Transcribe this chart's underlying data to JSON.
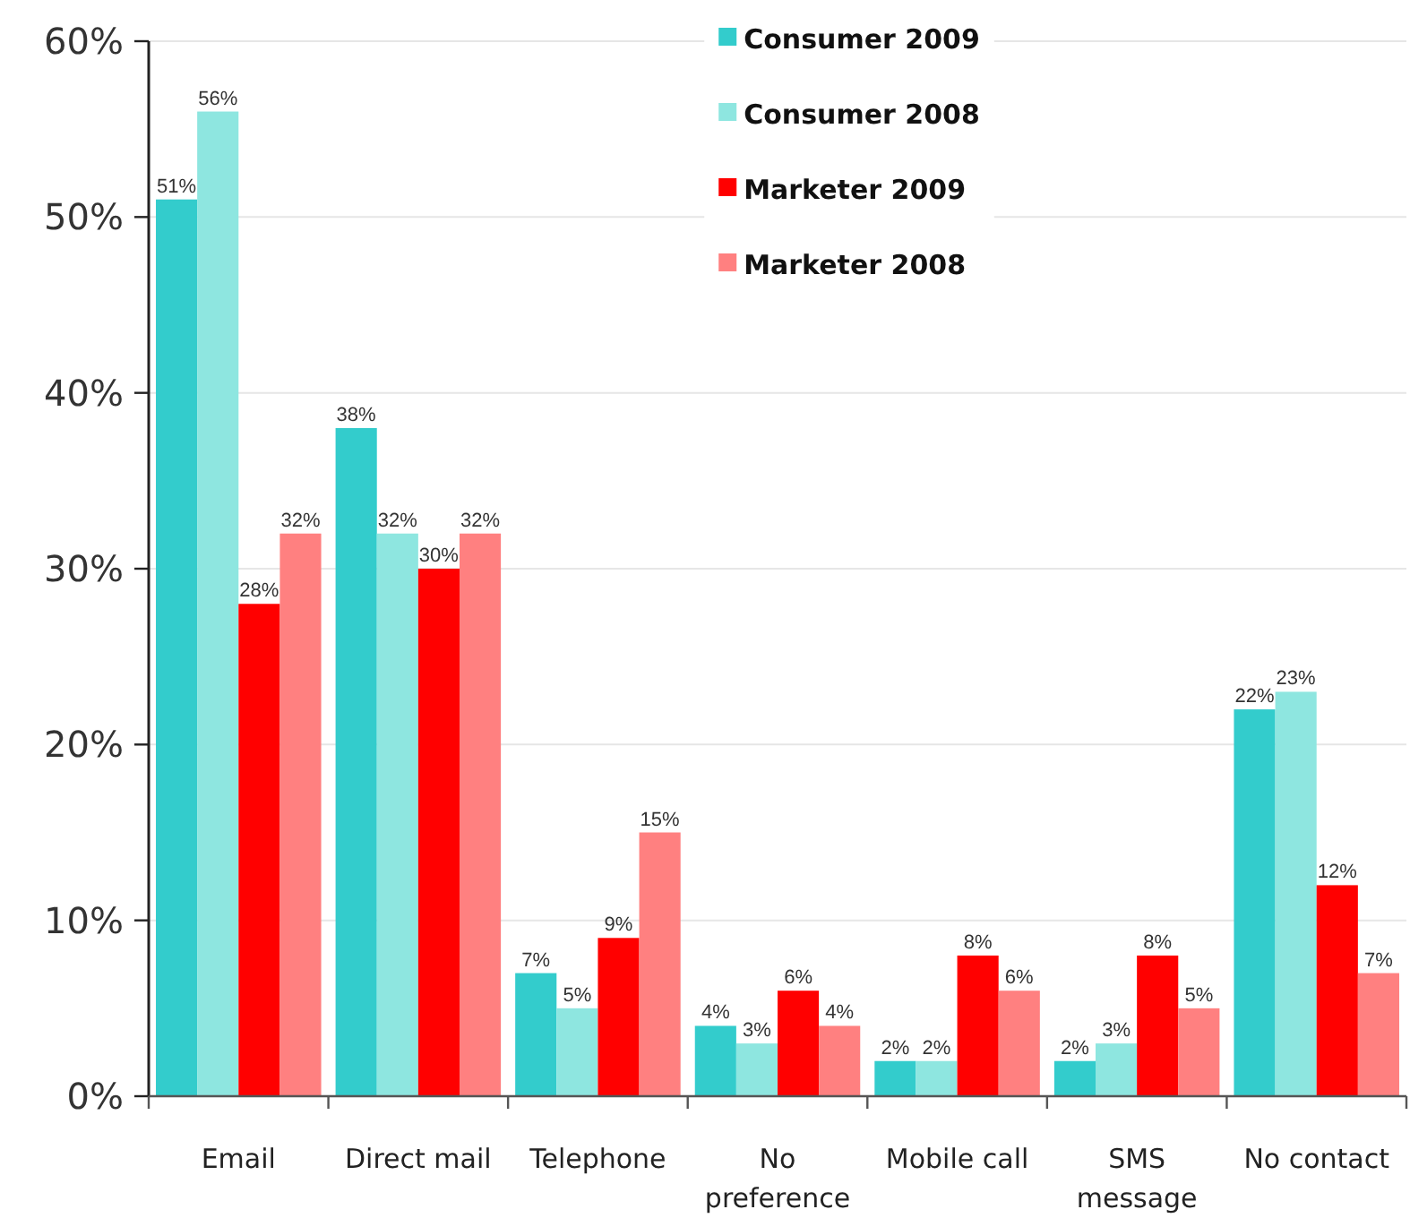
{
  "chart_data": {
    "type": "bar",
    "categories": [
      "Email",
      "Direct mail",
      "Telephone",
      "No preference",
      "Mobile call",
      "SMS message",
      "No contact"
    ],
    "series": [
      {
        "name": "Consumer 2009",
        "color": "#33cccc",
        "values": [
          51,
          38,
          7,
          4,
          2,
          2,
          22
        ],
        "value_labels": [
          "51%",
          "38%",
          "7%",
          "4%",
          "2%",
          "2%",
          "22%"
        ]
      },
      {
        "name": "Consumer 2008",
        "color": "#8ee6e0",
        "values": [
          56,
          32,
          5,
          3,
          2,
          3,
          23
        ],
        "value_labels": [
          "56%",
          "32%",
          "5%",
          "3%",
          "2%",
          "3%",
          "23%"
        ]
      },
      {
        "name": "Marketer 2009",
        "color": "#ff0000",
        "values": [
          28,
          30,
          9,
          6,
          8,
          8,
          12
        ],
        "value_labels": [
          "28%",
          "30%",
          "9%",
          "6%",
          "8%",
          "8%",
          "12%"
        ]
      },
      {
        "name": "Marketer 2008",
        "color": "#ff8080",
        "values": [
          32,
          32,
          15,
          4,
          6,
          5,
          7
        ],
        "value_labels": [
          "32%",
          "32%",
          "15%",
          "4%",
          "6%",
          "5%",
          "7%"
        ]
      }
    ],
    "ylim": [
      0,
      60
    ],
    "yticks": [
      {
        "value": 0,
        "label": "0%"
      },
      {
        "value": 10,
        "label": "10%"
      },
      {
        "value": 20,
        "label": "20%"
      },
      {
        "value": 30,
        "label": "30%"
      },
      {
        "value": 40,
        "label": "40%"
      },
      {
        "value": 50,
        "label": "50%"
      },
      {
        "value": 60,
        "label": "60%"
      }
    ],
    "grid": "y",
    "legend": "top"
  }
}
